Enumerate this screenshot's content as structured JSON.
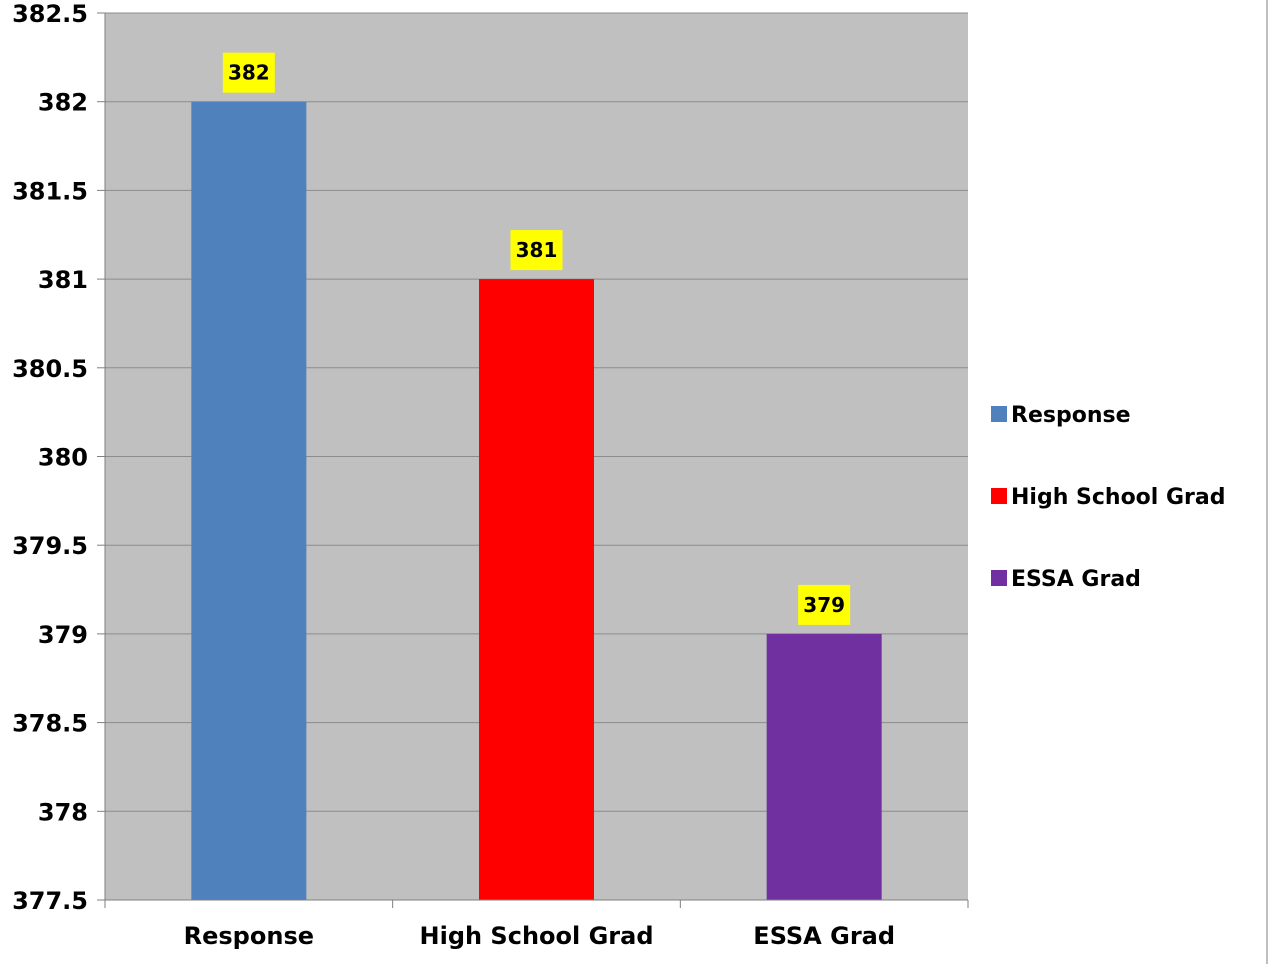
{
  "chart_data": {
    "type": "bar",
    "title": "",
    "xlabel": "",
    "ylabel": "",
    "categories": [
      "Response",
      "High School Grad",
      "ESSA Grad"
    ],
    "values": [
      382,
      381,
      379
    ],
    "data_labels": [
      "382",
      "381",
      "379"
    ],
    "colors": [
      "#4f81bd",
      "#ff0000",
      "#7030a0"
    ],
    "ylim": [
      377.5,
      382.5
    ],
    "yticks": [
      377.5,
      378,
      378.5,
      379,
      379.5,
      380,
      380.5,
      381,
      381.5,
      382,
      382.5
    ],
    "ytick_labels": [
      "377.5",
      "378",
      "378.5",
      "379",
      "379.5",
      "380",
      "380.5",
      "381",
      "381.5",
      "382",
      "382.5"
    ],
    "grid": true,
    "plot_background": "#c0c0c0",
    "data_label_background": "#ffff00",
    "legend": {
      "position": "right",
      "entries": [
        {
          "label": "Response",
          "color": "#4f81bd"
        },
        {
          "label": "High School Grad",
          "color": "#ff0000"
        },
        {
          "label": "ESSA Grad",
          "color": "#7030a0"
        }
      ]
    }
  }
}
